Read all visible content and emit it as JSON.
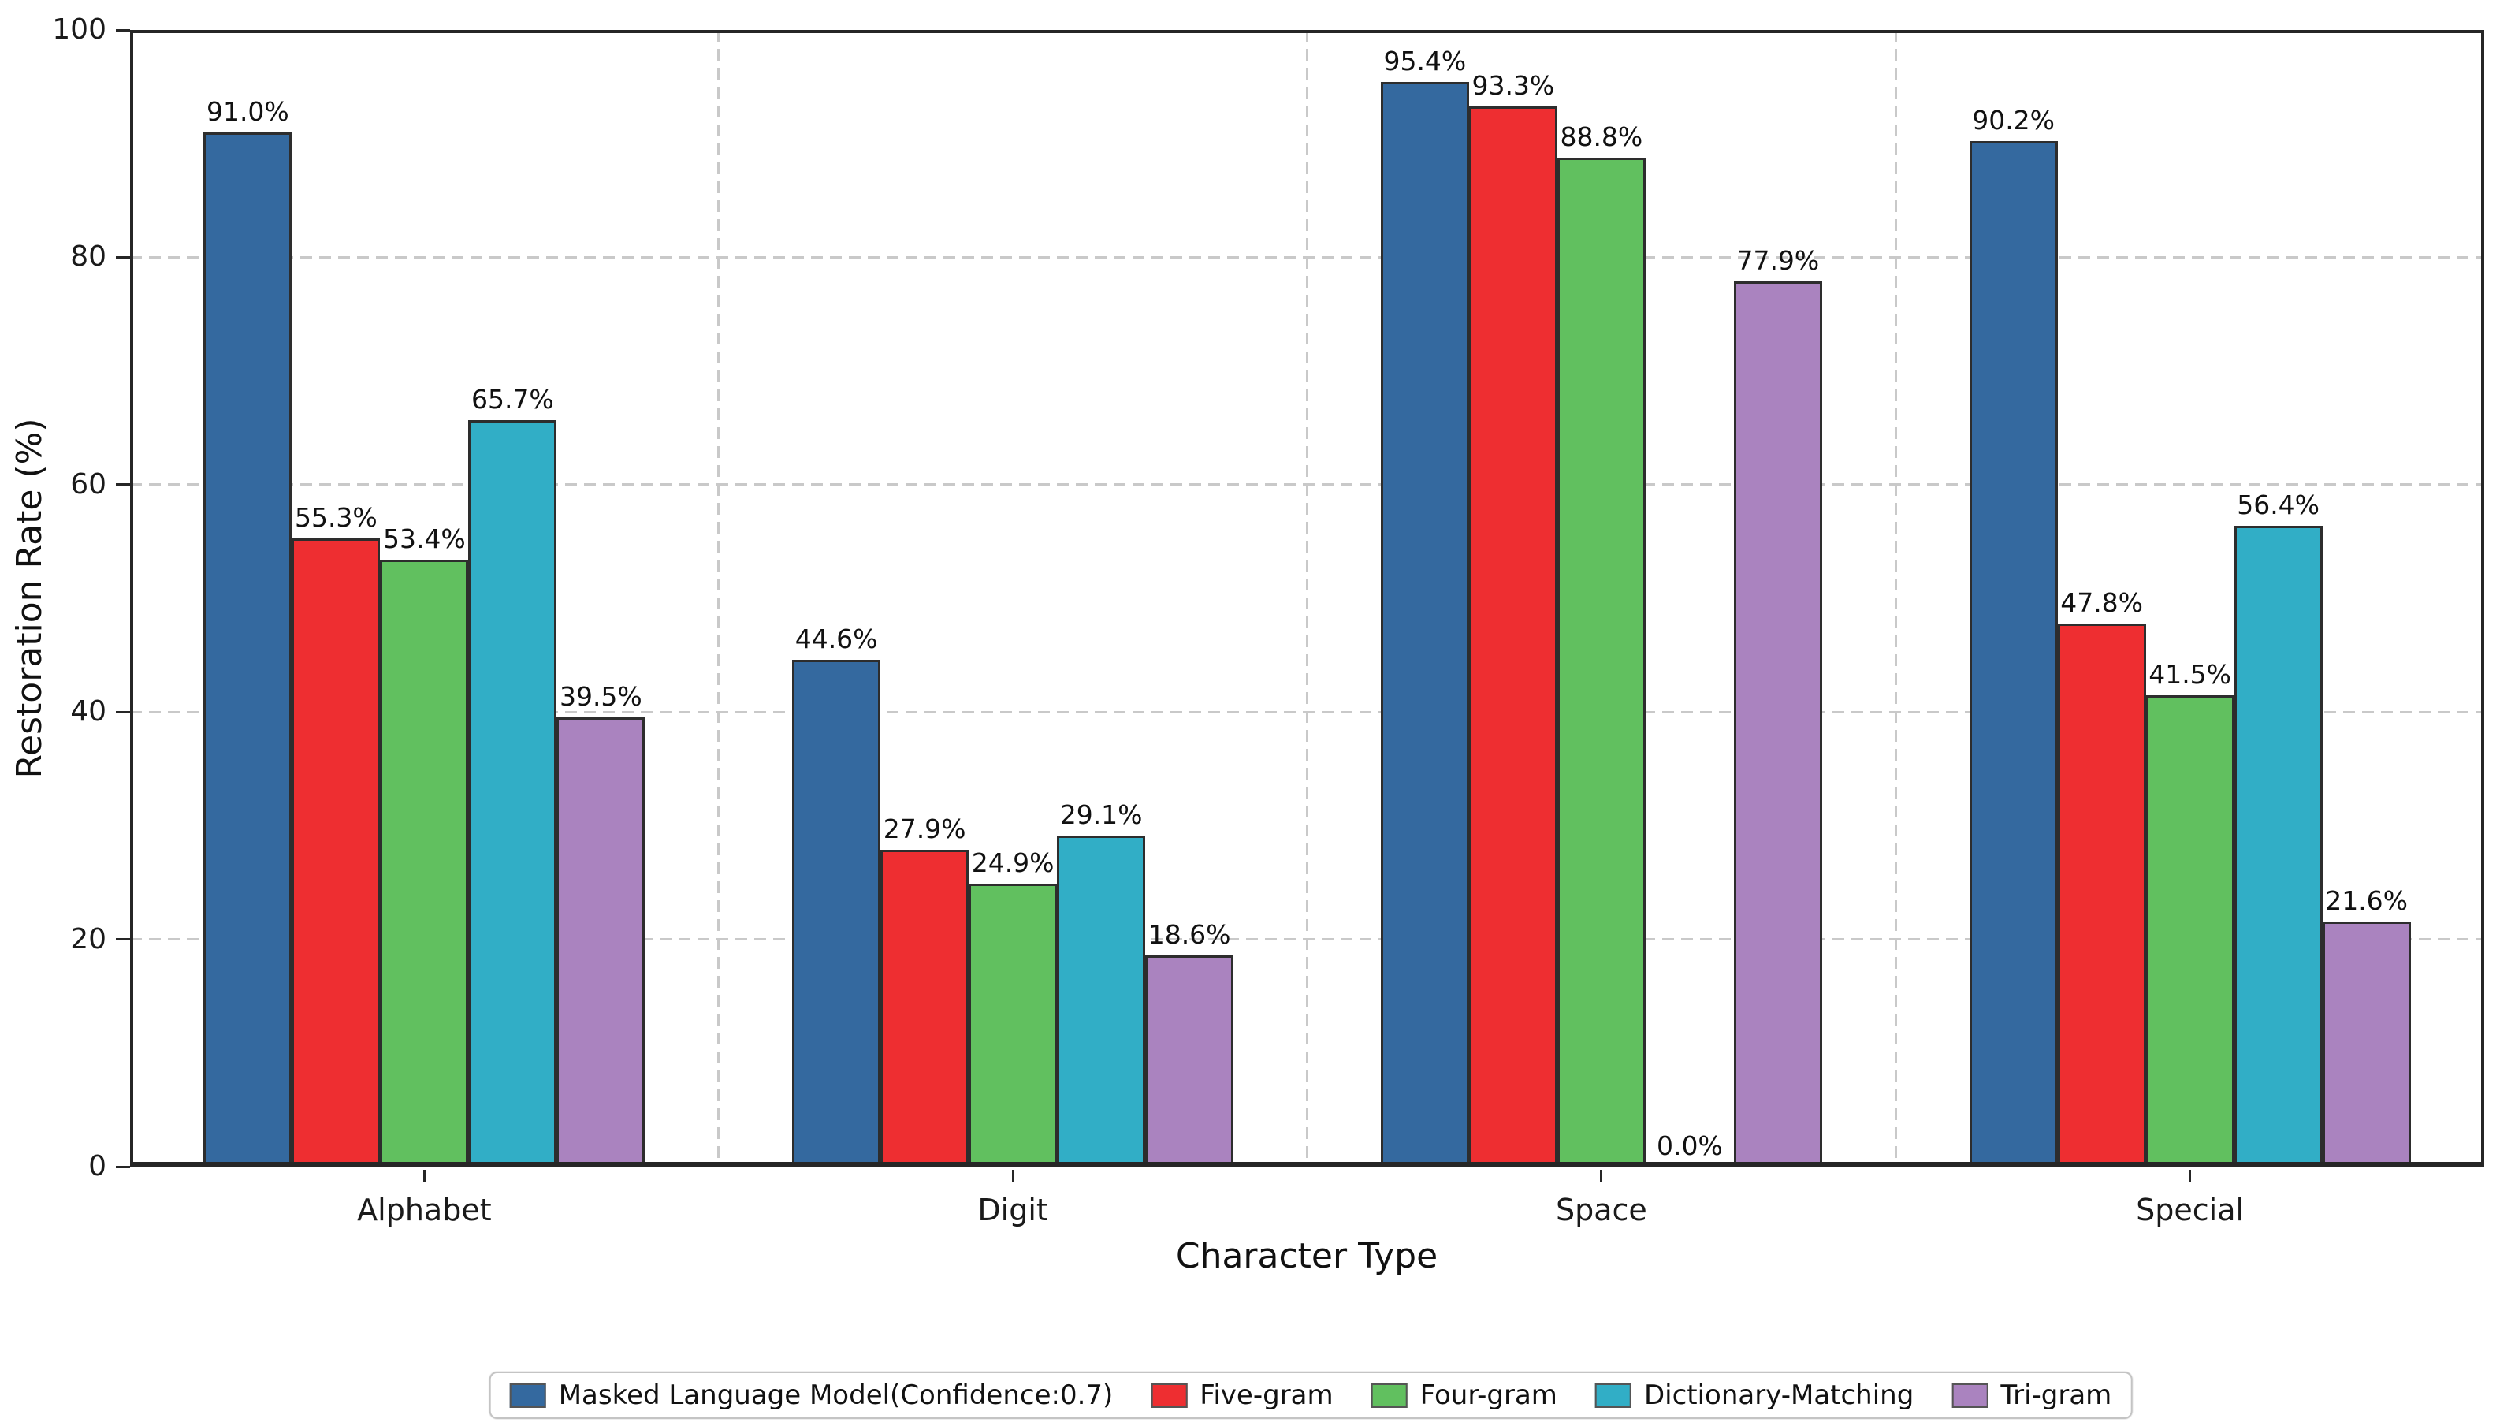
{
  "chart_data": {
    "type": "bar",
    "title": "",
    "xlabel": "Character Type",
    "ylabel": "Restoration Rate (%)",
    "ylim": [
      0,
      100
    ],
    "yticks": [
      0,
      20,
      40,
      60,
      80,
      100
    ],
    "categories": [
      "Alphabet",
      "Digit",
      "Space",
      "Special"
    ],
    "series": [
      {
        "name": "Masked Language Model(Confidence:0.7)",
        "color": "#34699f",
        "values": [
          91.0,
          44.6,
          95.4,
          90.2
        ]
      },
      {
        "name": "Five-gram",
        "color": "#ee2e31",
        "values": [
          55.3,
          27.9,
          93.3,
          47.8
        ]
      },
      {
        "name": "Four-gram",
        "color": "#61c05f",
        "values": [
          53.4,
          24.9,
          88.8,
          41.5
        ]
      },
      {
        "name": "Dictionary-Matching",
        "color": "#31aec6",
        "values": [
          65.7,
          29.1,
          0.0,
          56.4
        ]
      },
      {
        "name": "Tri-gram",
        "color": "#aa83bf",
        "values": [
          39.5,
          18.6,
          77.9,
          21.6
        ]
      }
    ],
    "value_labels": [
      [
        "91.0%",
        "44.6%",
        "95.4%",
        "90.2%"
      ],
      [
        "55.3%",
        "27.9%",
        "93.3%",
        "47.8%"
      ],
      [
        "53.4%",
        "24.9%",
        "88.8%",
        "41.5%"
      ],
      [
        "65.7%",
        "29.1%",
        "0.0%",
        "56.4%"
      ],
      [
        "39.5%",
        "18.6%",
        "77.9%",
        "21.6%"
      ]
    ],
    "grid": {
      "horizontal_dashed_at": [
        20,
        40,
        60,
        80
      ],
      "vertical_dashed_at_category_boundaries": true
    },
    "legend_position": "bottom-center",
    "bar_edge_color": "#2d2d2d"
  }
}
